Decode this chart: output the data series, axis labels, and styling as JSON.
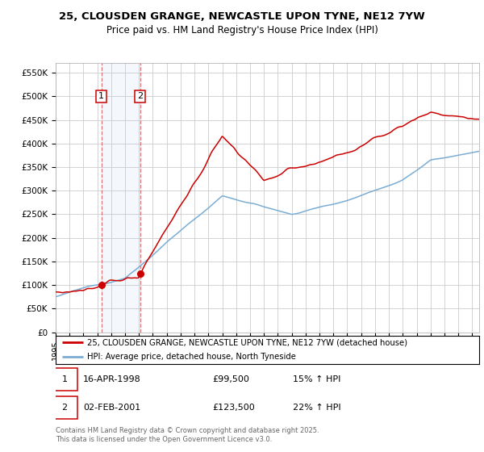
{
  "title_line1": "25, CLOUSDEN GRANGE, NEWCASTLE UPON TYNE, NE12 7YW",
  "title_line2": "Price paid vs. HM Land Registry's House Price Index (HPI)",
  "ylabel_ticks": [
    "£0",
    "£50K",
    "£100K",
    "£150K",
    "£200K",
    "£250K",
    "£300K",
    "£350K",
    "£400K",
    "£450K",
    "£500K",
    "£550K"
  ],
  "ytick_vals": [
    0,
    50000,
    100000,
    150000,
    200000,
    250000,
    300000,
    350000,
    400000,
    450000,
    500000,
    550000
  ],
  "ylim": [
    0,
    570000
  ],
  "sale1_date": 1998.29,
  "sale1_price": 99500,
  "sale1_label": "1",
  "sale2_date": 2001.09,
  "sale2_price": 123500,
  "sale2_label": "2",
  "red_line_color": "#cc0000",
  "blue_line_color": "#7aadd4",
  "grid_color": "#cccccc",
  "background_color": "#ffffff",
  "legend1_text": "25, CLOUSDEN GRANGE, NEWCASTLE UPON TYNE, NE12 7YW (detached house)",
  "legend2_text": "HPI: Average price, detached house, North Tyneside",
  "footer": "Contains HM Land Registry data © Crown copyright and database right 2025.\nThis data is licensed under the Open Government Licence v3.0.",
  "xmin": 1995.0,
  "xmax": 2025.5
}
